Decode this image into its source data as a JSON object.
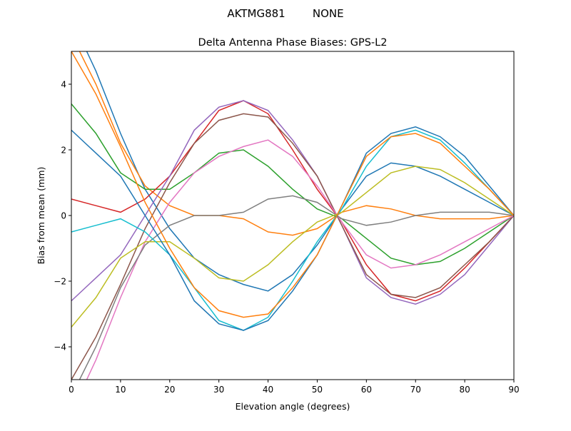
{
  "chart_data": {
    "type": "line",
    "suptitle": "AKTMG881        NONE",
    "title": "Delta Antenna Phase Biases: GPS-L2",
    "xlabel": "Elevation angle (degrees)",
    "ylabel": "Bias from mean (mm)",
    "xlim": [
      0,
      90
    ],
    "ylim": [
      -5,
      5
    ],
    "xticks": [
      0,
      10,
      20,
      30,
      40,
      50,
      60,
      70,
      80,
      90
    ],
    "yticks": [
      -4,
      -2,
      0,
      2,
      4
    ],
    "grid": false,
    "x": [
      0,
      5,
      10,
      15,
      20,
      25,
      30,
      35,
      40,
      45,
      50,
      55,
      60,
      65,
      70,
      75,
      80,
      85,
      90
    ],
    "colors": [
      "#1f77b4",
      "#ff7f0e",
      "#2ca02c",
      "#d62728",
      "#9467bd",
      "#8c564b",
      "#e377c2",
      "#7f7f7f",
      "#bcbd22",
      "#17becf"
    ],
    "series": [
      {
        "values": [
          6,
          4.4,
          2.5,
          0.8,
          -0.4,
          -1.3,
          -1.8,
          -2.1,
          -2.3,
          -1.8,
          -0.9,
          0.2,
          1.2,
          1.6,
          1.5,
          1.2,
          0.8,
          0.4,
          0
        ]
      },
      {
        "values": [
          5.5,
          4.0,
          2.2,
          0.9,
          0.3,
          0,
          0,
          -0.1,
          -0.5,
          -0.6,
          -0.4,
          0.1,
          0.3,
          0.2,
          0,
          -0.1,
          -0.1,
          -0.1,
          0
        ]
      },
      {
        "values": [
          3.4,
          2.5,
          1.3,
          0.8,
          0.8,
          1.3,
          1.9,
          2.0,
          1.5,
          0.8,
          0.2,
          -0.1,
          -0.7,
          -1.3,
          -1.5,
          -1.4,
          -1.0,
          -0.5,
          0
        ]
      },
      {
        "values": [
          0.5,
          0.3,
          0.1,
          0.5,
          1.2,
          2.2,
          3.2,
          3.5,
          3.1,
          2.0,
          0.8,
          -0.2,
          -1.5,
          -2.4,
          -2.6,
          -2.3,
          -1.6,
          -0.8,
          0
        ]
      },
      {
        "values": [
          -2.6,
          -1.9,
          -1.2,
          0,
          1.2,
          2.6,
          3.3,
          3.5,
          3.2,
          2.3,
          1.2,
          -0.3,
          -1.9,
          -2.5,
          -2.7,
          -2.4,
          -1.8,
          -0.9,
          0
        ]
      },
      {
        "values": [
          -5.0,
          -3.7,
          -2.1,
          -0.4,
          1.0,
          2.2,
          2.9,
          3.1,
          3.0,
          2.2,
          1.2,
          -0.3,
          -1.8,
          -2.4,
          -2.5,
          -2.2,
          -1.5,
          -0.8,
          0
        ]
      },
      {
        "values": [
          -6,
          -4.4,
          -2.5,
          -0.8,
          0.4,
          1.3,
          1.8,
          2.1,
          2.3,
          1.8,
          0.9,
          -0.2,
          -1.2,
          -1.6,
          -1.5,
          -1.2,
          -0.8,
          -0.4,
          0
        ]
      },
      {
        "values": [
          -5.5,
          -4.0,
          -2.2,
          -0.9,
          -0.3,
          0,
          0,
          0.1,
          0.5,
          0.6,
          0.4,
          -0.1,
          -0.3,
          -0.2,
          0,
          0.1,
          0.1,
          0.1,
          0
        ]
      },
      {
        "values": [
          -3.4,
          -2.5,
          -1.3,
          -0.8,
          -0.8,
          -1.3,
          -1.9,
          -2.0,
          -1.5,
          -0.8,
          -0.2,
          0.1,
          0.7,
          1.3,
          1.5,
          1.4,
          1.0,
          0.5,
          0
        ]
      },
      {
        "values": [
          -0.5,
          -0.3,
          -0.1,
          -0.5,
          -1.2,
          -2.2,
          -3.2,
          -3.5,
          -3.1,
          -2.0,
          -0.8,
          0.2,
          1.5,
          2.4,
          2.6,
          2.3,
          1.6,
          0.8,
          0
        ]
      },
      {
        "values": [
          2.6,
          1.9,
          1.2,
          0,
          -1.2,
          -2.6,
          -3.3,
          -3.5,
          -3.2,
          -2.3,
          -1.2,
          0.3,
          1.9,
          2.5,
          2.7,
          2.4,
          1.8,
          0.9,
          0
        ]
      },
      {
        "values": [
          5.0,
          3.7,
          2.1,
          0.4,
          -1.0,
          -2.2,
          -2.9,
          -3.1,
          -3.0,
          -2.2,
          -1.2,
          0.3,
          1.8,
          2.4,
          2.5,
          2.2,
          1.5,
          0.8,
          0
        ]
      }
    ]
  }
}
